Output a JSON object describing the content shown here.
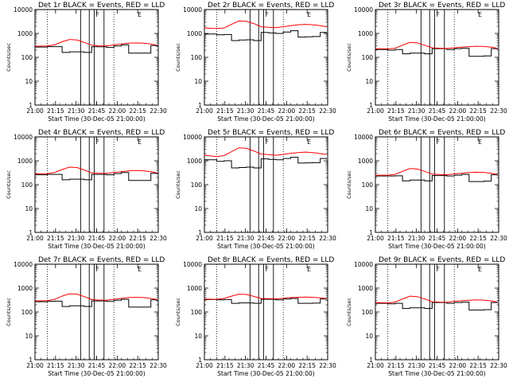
{
  "figure": {
    "x_label": "Start Time (30-Dec-05 21:00:00)",
    "y_label": "Counts/sec",
    "x_ticks": [
      "21:00",
      "21:15",
      "21:30",
      "21:45",
      "22:00",
      "22:15",
      "22:30"
    ],
    "y_ticks": [
      "1",
      "10",
      "100",
      "1000",
      "10000"
    ],
    "markers": [
      "F",
      "E"
    ],
    "colors": {
      "events": "#000000",
      "lld": "#ff0000",
      "axes": "#000000"
    }
  },
  "chart_data": [
    {
      "type": "line",
      "title": "Det 1r BLACK = Events, RED = LLD",
      "yscale": "log",
      "ylim": [
        1,
        10000
      ],
      "x_minutes": [
        0,
        10,
        16,
        22,
        28,
        34,
        40,
        46,
        52,
        58,
        64,
        70,
        76,
        82,
        88,
        94,
        99
      ],
      "series": [
        {
          "name": "Events",
          "values": [
            270,
            280,
            280,
            160,
            170,
            170,
            160,
            275,
            275,
            260,
            300,
            330,
            150,
            150,
            150,
            310,
            270
          ]
        },
        {
          "name": "LLD",
          "values": [
            290,
            300,
            330,
            450,
            560,
            530,
            420,
            320,
            300,
            300,
            330,
            360,
            390,
            400,
            390,
            360,
            320
          ]
        }
      ]
    },
    {
      "type": "line",
      "title": "Det 2r BLACK = Events, RED = LLD",
      "yscale": "log",
      "ylim": [
        1,
        10000
      ],
      "x_minutes": [
        0,
        10,
        16,
        22,
        28,
        34,
        40,
        46,
        52,
        58,
        64,
        70,
        76,
        82,
        88,
        94,
        99
      ],
      "series": [
        {
          "name": "Events",
          "values": [
            950,
            880,
            900,
            500,
            530,
            540,
            500,
            1100,
            1050,
            1000,
            1150,
            1300,
            700,
            720,
            740,
            1100,
            1000
          ]
        },
        {
          "name": "LLD",
          "values": [
            1700,
            1600,
            1700,
            2400,
            3300,
            3200,
            2600,
            1900,
            1800,
            1750,
            1900,
            2100,
            2300,
            2400,
            2300,
            2100,
            1900
          ]
        }
      ]
    },
    {
      "type": "line",
      "title": "Det 3r BLACK = Events, RED = LLD",
      "yscale": "log",
      "ylim": [
        1,
        10000
      ],
      "x_minutes": [
        0,
        10,
        16,
        22,
        28,
        34,
        40,
        46,
        52,
        58,
        64,
        70,
        76,
        82,
        88,
        94,
        99
      ],
      "series": [
        {
          "name": "Events",
          "values": [
            210,
            200,
            210,
            140,
            150,
            150,
            140,
            230,
            230,
            210,
            230,
            240,
            110,
            110,
            115,
            230,
            220
          ]
        },
        {
          "name": "LLD",
          "values": [
            230,
            225,
            240,
            320,
            420,
            400,
            320,
            250,
            240,
            235,
            250,
            270,
            280,
            290,
            285,
            265,
            240
          ]
        }
      ]
    },
    {
      "type": "line",
      "title": "Det 4r BLACK = Events, RED = LLD",
      "yscale": "log",
      "ylim": [
        1,
        10000
      ],
      "x_minutes": [
        0,
        10,
        16,
        22,
        28,
        34,
        40,
        46,
        52,
        58,
        64,
        70,
        76,
        82,
        88,
        94,
        99
      ],
      "series": [
        {
          "name": "Events",
          "values": [
            260,
            270,
            270,
            160,
            170,
            170,
            160,
            270,
            270,
            260,
            290,
            320,
            150,
            150,
            150,
            300,
            270
          ]
        },
        {
          "name": "LLD",
          "values": [
            280,
            290,
            320,
            430,
            540,
            520,
            410,
            310,
            300,
            295,
            320,
            350,
            380,
            390,
            380,
            350,
            310
          ]
        }
      ]
    },
    {
      "type": "line",
      "title": "Det 5r BLACK = Events, RED = LLD",
      "yscale": "log",
      "ylim": [
        1,
        10000
      ],
      "x_minutes": [
        0,
        10,
        16,
        22,
        28,
        34,
        40,
        46,
        52,
        58,
        64,
        70,
        76,
        82,
        88,
        94,
        99
      ],
      "series": [
        {
          "name": "Events",
          "values": [
            1100,
            950,
            1000,
            500,
            520,
            540,
            500,
            1200,
            1150,
            1100,
            1250,
            1400,
            800,
            820,
            830,
            1250,
            1150
          ]
        },
        {
          "name": "LLD",
          "values": [
            1700,
            1500,
            1650,
            2400,
            3500,
            3300,
            2600,
            1900,
            1800,
            1700,
            1850,
            2050,
            2200,
            2300,
            2200,
            2000,
            1800
          ]
        }
      ]
    },
    {
      "type": "line",
      "title": "Det 6r BLACK = Events, RED = LLD",
      "yscale": "log",
      "ylim": [
        1,
        10000
      ],
      "x_minutes": [
        0,
        10,
        16,
        22,
        28,
        34,
        40,
        46,
        52,
        58,
        64,
        70,
        76,
        82,
        88,
        94,
        99
      ],
      "series": [
        {
          "name": "Events",
          "values": [
            230,
            230,
            235,
            145,
            155,
            155,
            145,
            240,
            240,
            230,
            250,
            270,
            135,
            135,
            140,
            260,
            240
          ]
        },
        {
          "name": "LLD",
          "values": [
            250,
            250,
            270,
            360,
            470,
            450,
            360,
            275,
            265,
            260,
            280,
            300,
            320,
            330,
            325,
            300,
            270
          ]
        }
      ]
    },
    {
      "type": "line",
      "title": "Det 7r BLACK = Events, RED = LLD",
      "yscale": "log",
      "ylim": [
        1,
        10000
      ],
      "x_minutes": [
        0,
        10,
        16,
        22,
        28,
        34,
        40,
        46,
        52,
        58,
        64,
        70,
        76,
        82,
        88,
        94,
        99
      ],
      "series": [
        {
          "name": "Events",
          "values": [
            270,
            280,
            285,
            170,
            180,
            180,
            170,
            290,
            290,
            275,
            310,
            340,
            160,
            160,
            160,
            320,
            280
          ]
        },
        {
          "name": "LLD",
          "values": [
            290,
            300,
            340,
            460,
            580,
            560,
            440,
            330,
            315,
            310,
            340,
            370,
            400,
            410,
            400,
            370,
            330
          ]
        }
      ]
    },
    {
      "type": "line",
      "title": "Det 8r BLACK = Events, RED = LLD",
      "yscale": "log",
      "ylim": [
        1,
        10000
      ],
      "x_minutes": [
        0,
        10,
        16,
        22,
        28,
        34,
        40,
        46,
        52,
        58,
        64,
        70,
        76,
        82,
        88,
        94,
        99
      ],
      "series": [
        {
          "name": "Events",
          "values": [
            330,
            320,
            330,
            230,
            240,
            240,
            230,
            340,
            340,
            320,
            350,
            370,
            230,
            230,
            235,
            350,
            330
          ]
        },
        {
          "name": "LLD",
          "values": [
            350,
            340,
            370,
            460,
            560,
            540,
            450,
            370,
            360,
            355,
            375,
            400,
            410,
            420,
            410,
            390,
            360
          ]
        }
      ]
    },
    {
      "type": "line",
      "title": "Det 9r BLACK = Events, RED = LLD",
      "yscale": "log",
      "ylim": [
        1,
        10000
      ],
      "x_minutes": [
        0,
        10,
        16,
        22,
        28,
        34,
        40,
        46,
        52,
        58,
        64,
        70,
        76,
        82,
        88,
        94,
        99
      ],
      "series": [
        {
          "name": "Events",
          "values": [
            230,
            220,
            230,
            140,
            150,
            150,
            140,
            250,
            250,
            230,
            250,
            260,
            120,
            120,
            125,
            250,
            240
          ]
        },
        {
          "name": "LLD",
          "values": [
            250,
            240,
            260,
            350,
            460,
            440,
            350,
            270,
            260,
            255,
            275,
            295,
            310,
            320,
            315,
            290,
            260
          ]
        }
      ]
    }
  ]
}
